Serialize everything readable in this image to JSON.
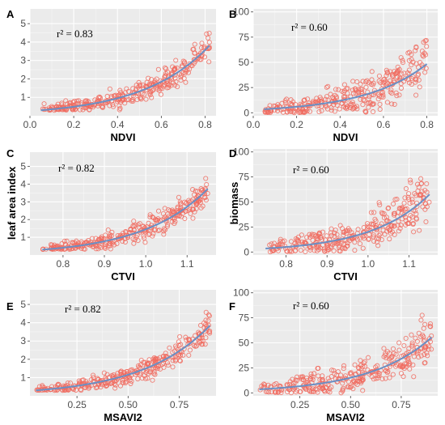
{
  "chart_data": [
    {
      "panel": "A",
      "type": "scatter",
      "xlabel": "NDVI",
      "ylabel": "",
      "xlim": [
        0,
        0.85
      ],
      "ylim": [
        0,
        5.8
      ],
      "xticks": [
        0.0,
        0.2,
        0.4,
        0.6,
        0.8
      ],
      "xtick_labels": [
        "0.0",
        "0.2",
        "0.4",
        "0.6",
        "0.8"
      ],
      "yticks": [
        1,
        2,
        3,
        4,
        5
      ],
      "ytick_labels": [
        "1",
        "2",
        "3",
        "4",
        "5"
      ],
      "annotation": "r² = 0.83",
      "fit": {
        "a": 0.3,
        "b": 3.3
      },
      "xrange": [
        0.05,
        0.82
      ],
      "yfloor": 0.3,
      "noise": 0.45,
      "grid": true
    },
    {
      "panel": "B",
      "type": "scatter",
      "xlabel": "NDVI",
      "ylabel": "",
      "xlim": [
        0,
        0.85
      ],
      "ylim": [
        -3,
        103
      ],
      "xticks": [
        0.0,
        0.2,
        0.4,
        0.6,
        0.8
      ],
      "xtick_labels": [
        "0.0",
        "0.2",
        "0.4",
        "0.6",
        "0.8"
      ],
      "yticks": [
        0,
        25,
        50,
        75,
        100
      ],
      "ytick_labels": [
        "0",
        "25",
        "50",
        "75",
        "100"
      ],
      "annotation": "r² = 0.60",
      "fit": {
        "a": 3.5,
        "b": 3.5
      },
      "xrange": [
        0.05,
        0.8
      ],
      "yfloor": 0,
      "noise": 14,
      "grid": true
    },
    {
      "panel": "C",
      "type": "scatter",
      "xlabel": "CTVI",
      "ylabel": "leaf area index",
      "xlim": [
        0.72,
        1.17
      ],
      "ylim": [
        0,
        5.8
      ],
      "xticks": [
        0.8,
        0.9,
        1.0,
        1.1
      ],
      "xtick_labels": [
        "0.8",
        "0.9",
        "1.0",
        "1.1"
      ],
      "yticks": [
        1,
        2,
        3,
        4,
        5
      ],
      "ytick_labels": [
        "1",
        "2",
        "3",
        "4",
        "5"
      ],
      "annotation": "r² = 0.82",
      "fit": {
        "a": 0.3,
        "b": 6.3
      },
      "xrange": [
        0.75,
        1.15
      ],
      "yfloor": 0.3,
      "noise": 0.45,
      "grid": true
    },
    {
      "panel": "D",
      "type": "scatter",
      "xlabel": "CTVI",
      "ylabel": "biomass",
      "xlim": [
        0.72,
        1.17
      ],
      "ylim": [
        -3,
        103
      ],
      "xticks": [
        0.8,
        0.9,
        1.0,
        1.1
      ],
      "xtick_labels": [
        "0.8",
        "0.9",
        "1.0",
        "1.1"
      ],
      "yticks": [
        0,
        25,
        50,
        75,
        100
      ],
      "ytick_labels": [
        "0",
        "25",
        "50",
        "75",
        "100"
      ],
      "annotation": "r² = 0.60",
      "fit": {
        "a": 3.5,
        "b": 7.0
      },
      "xrange": [
        0.75,
        1.15
      ],
      "yfloor": 0,
      "noise": 14,
      "grid": true
    },
    {
      "panel": "E",
      "type": "scatter",
      "xlabel": "MSAVI2",
      "ylabel": "",
      "xlim": [
        0.02,
        0.93
      ],
      "ylim": [
        0,
        5.8
      ],
      "xticks": [
        0.25,
        0.5,
        0.75
      ],
      "xtick_labels": [
        "0.25",
        "0.50",
        "0.75"
      ],
      "yticks": [
        1,
        2,
        3,
        4,
        5
      ],
      "ytick_labels": [
        "1",
        "2",
        "3",
        "4",
        "5"
      ],
      "annotation": "r² = 0.82",
      "fit": {
        "a": 0.3,
        "b": 3.0
      },
      "xrange": [
        0.05,
        0.9
      ],
      "yfloor": 0.3,
      "noise": 0.45,
      "grid": true
    },
    {
      "panel": "F",
      "type": "scatter",
      "xlabel": "MSAVI2",
      "ylabel": "",
      "xlim": [
        0.02,
        0.93
      ],
      "ylim": [
        -3,
        103
      ],
      "xticks": [
        0.25,
        0.5,
        0.75
      ],
      "xtick_labels": [
        "0.25",
        "0.50",
        "0.75"
      ],
      "yticks": [
        0,
        25,
        50,
        75,
        100
      ],
      "ytick_labels": [
        "0",
        "25",
        "50",
        "75",
        "100"
      ],
      "annotation": "r² = 0.60",
      "fit": {
        "a": 3.5,
        "b": 3.25
      },
      "xrange": [
        0.05,
        0.9
      ],
      "yfloor": 0,
      "noise": 14,
      "grid": true
    }
  ],
  "colors": {
    "panel_bg": "#ebebeb",
    "grid": "#ffffff",
    "points": "#f06b5f",
    "fit_line": "#6a8fc4"
  }
}
